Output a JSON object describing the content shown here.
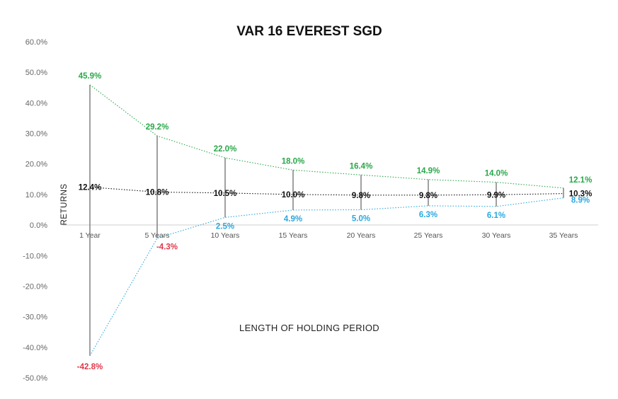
{
  "chart_data": {
    "type": "line",
    "title": "VAR 16 EVEREST SGD",
    "xlabel": "LENGTH OF HOLDING PERIOD",
    "ylabel": "RETURNS",
    "ylim": [
      -50,
      60
    ],
    "y_ticks": [
      "60.0%",
      "50.0%",
      "40.0%",
      "30.0%",
      "20.0%",
      "10.0%",
      "0.0%",
      "-10.0%",
      "-20.0%",
      "-30.0%",
      "-40.0%",
      "-50.0%"
    ],
    "y_tick_values": [
      60,
      50,
      40,
      30,
      20,
      10,
      0,
      -10,
      -20,
      -30,
      -40,
      -50
    ],
    "categories": [
      "1 Year",
      "5 Years",
      "10 Years",
      "15 Years",
      "20 Years",
      "25 Years",
      "30 Years",
      "35 Years"
    ],
    "series": [
      {
        "values": [
          45.9,
          29.2,
          22.0,
          18.0,
          16.4,
          14.9,
          14.0,
          12.1
        ],
        "labels": [
          "45.9%",
          "29.2%",
          "22.0%",
          "18.0%",
          "16.4%",
          "14.9%",
          "14.0%",
          "12.1%"
        ],
        "color": "#2aa84a"
      },
      {
        "values": [
          12.4,
          10.8,
          10.5,
          10.0,
          9.8,
          9.8,
          9.9,
          10.3
        ],
        "labels": [
          "12.4%",
          "10.8%",
          "10.5%",
          "10.0%",
          "9.8%",
          "9.8%",
          "9.9%",
          "10.3%"
        ],
        "color": "#111111"
      },
      {
        "values": [
          -42.8,
          -4.3,
          2.5,
          4.9,
          5.0,
          6.3,
          6.1,
          8.9
        ],
        "labels": [
          "-42.8%",
          "-4.3%",
          "2.5%",
          "4.9%",
          "5.0%",
          "6.3%",
          "6.1%",
          "8.9%"
        ],
        "color": "#29a8e0",
        "negative_color": "#e0394a"
      }
    ],
    "range_bar_color": "#888888",
    "grid": false
  }
}
